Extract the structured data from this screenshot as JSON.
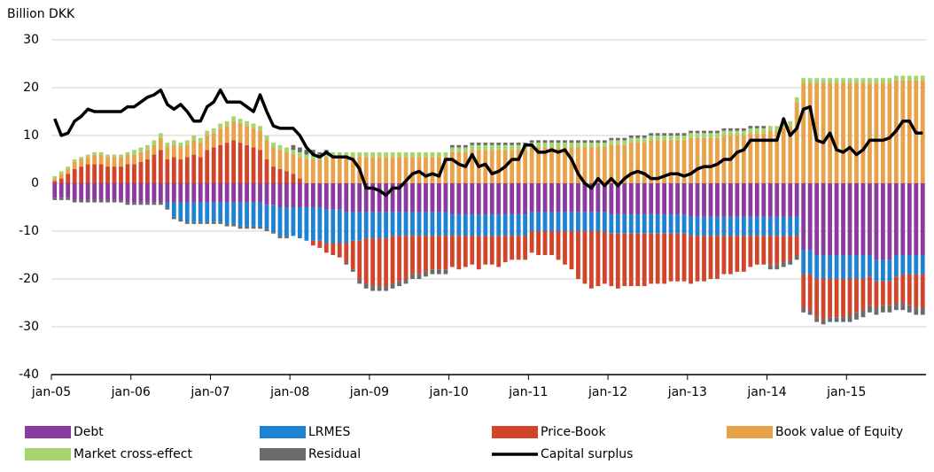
{
  "chart_data": {
    "type": "bar",
    "stacked": true,
    "y_label": "Billion DKK",
    "categories": [
      "jan-05",
      null,
      null,
      null,
      null,
      null,
      null,
      null,
      null,
      null,
      null,
      null,
      "jan-06",
      null,
      null,
      null,
      null,
      null,
      null,
      null,
      null,
      null,
      null,
      null,
      "jan-07",
      null,
      null,
      null,
      null,
      null,
      null,
      null,
      null,
      null,
      null,
      null,
      "jan-08",
      null,
      null,
      null,
      null,
      null,
      null,
      null,
      null,
      null,
      null,
      null,
      "jan-09",
      null,
      null,
      null,
      null,
      null,
      null,
      null,
      null,
      null,
      null,
      null,
      "jan-10",
      null,
      null,
      null,
      null,
      null,
      null,
      null,
      null,
      null,
      null,
      null,
      "jan-11",
      null,
      null,
      null,
      null,
      null,
      null,
      null,
      null,
      null,
      null,
      null,
      "jan-12",
      null,
      null,
      null,
      null,
      null,
      null,
      null,
      null,
      null,
      null,
      null,
      "jan-13",
      null,
      null,
      null,
      null,
      null,
      null,
      null,
      null,
      null,
      null,
      null,
      "jan-14",
      null,
      null,
      null,
      null,
      null,
      null,
      null,
      null,
      null,
      null,
      null,
      "jan-15",
      null,
      null,
      null,
      null,
      null,
      null,
      null,
      null,
      null,
      null,
      null
    ],
    "ylim": [
      -40,
      30
    ],
    "yticks": [
      -40,
      -30,
      -20,
      -10,
      0,
      10,
      20,
      30
    ],
    "grid": true,
    "series": [
      {
        "name": "Debt",
        "color": "#8b3a9e",
        "values": [
          -3,
          -3,
          -3,
          -3.5,
          -3.5,
          -3.5,
          -3.5,
          -3.5,
          -3.5,
          -3.5,
          -3.5,
          -4,
          -4,
          -4,
          -4,
          -4,
          -4,
          -4,
          -4,
          -4,
          -4,
          -4,
          -4,
          -4,
          -4,
          -4,
          -4,
          -4,
          -4,
          -4,
          -4,
          -4,
          -4.5,
          -4.5,
          -5,
          -5,
          -5,
          -5,
          -5,
          -5,
          -5,
          -5.5,
          -5.5,
          -5.5,
          -6,
          -6,
          -6,
          -6,
          -6,
          -6,
          -6,
          -6,
          -6,
          -6,
          -6,
          -6,
          -6,
          -6,
          -6,
          -6,
          -6.5,
          -6.5,
          -6.5,
          -6.5,
          -6.5,
          -6.5,
          -6.5,
          -6.5,
          -6.5,
          -6.5,
          -6.5,
          -6.5,
          -6,
          -6,
          -6,
          -6,
          -6,
          -6,
          -6,
          -6,
          -6,
          -6,
          -6,
          -6,
          -6.5,
          -6.5,
          -6.5,
          -6.5,
          -6.5,
          -6.5,
          -6.5,
          -6.5,
          -6.5,
          -6.5,
          -6.5,
          -6.5,
          -7,
          -7,
          -7,
          -7,
          -7,
          -7,
          -7,
          -7,
          -7,
          -7,
          -7,
          -7,
          -7,
          -7,
          -7,
          -7,
          -7,
          -14,
          -14,
          -15,
          -15,
          -15,
          -15,
          -15,
          -15,
          -15,
          -15,
          -15,
          -16,
          -16,
          -16,
          -15,
          -15,
          -15,
          -15,
          -15
        ]
      },
      {
        "name": "LRMES",
        "color": "#1e82d2",
        "values": [
          0,
          0,
          0,
          0,
          0,
          0,
          0,
          0,
          0,
          0,
          0,
          0,
          0,
          0,
          0,
          0,
          0,
          -1,
          -3,
          -3.5,
          -4,
          -4,
          -4,
          -4,
          -4,
          -4,
          -4.5,
          -4.5,
          -5,
          -5,
          -5,
          -5,
          -5,
          -5.5,
          -6,
          -6,
          -6,
          -6.5,
          -7,
          -7,
          -7,
          -7,
          -7,
          -7,
          -6.5,
          -6,
          -6,
          -5.5,
          -5.5,
          -5.5,
          -5.5,
          -5,
          -5,
          -5,
          -5,
          -5,
          -5,
          -5,
          -5,
          -5,
          -4.5,
          -4.5,
          -4.5,
          -4.5,
          -4.5,
          -4.5,
          -4.5,
          -4.5,
          -4.5,
          -4.5,
          -4.5,
          -4.5,
          -4,
          -4,
          -4,
          -4,
          -4,
          -4,
          -4,
          -4,
          -4,
          -4,
          -4,
          -4,
          -4,
          -4,
          -4,
          -4,
          -4,
          -4,
          -4,
          -4,
          -4,
          -4,
          -4,
          -4,
          -4,
          -4,
          -4,
          -4,
          -4,
          -4,
          -4,
          -4,
          -4,
          -4,
          -4,
          -4,
          -4,
          -4,
          -4,
          -4,
          -4,
          -5,
          -5,
          -5,
          -5,
          -5,
          -5,
          -5,
          -5,
          -5,
          -5,
          -4.5,
          -4.5,
          -4.5,
          -4.5,
          -4.5,
          -4,
          -4,
          -4,
          -4
        ]
      },
      {
        "name": "Price-Book",
        "color": "#d2452a",
        "values": [
          0.5,
          1,
          2,
          3,
          3.5,
          4,
          4,
          4,
          3.5,
          3.5,
          3.5,
          4,
          4,
          4.5,
          5,
          6,
          7,
          5,
          5.5,
          5,
          5.5,
          6,
          5.5,
          7,
          7.5,
          8,
          8.5,
          9,
          8.5,
          8,
          7.5,
          7,
          5,
          3.5,
          3,
          2.5,
          2,
          1,
          0,
          -1,
          -1.5,
          -2,
          -2.5,
          -3,
          -4,
          -6,
          -8,
          -9.5,
          -10,
          -10,
          -10,
          -10,
          -9.5,
          -9,
          -8,
          -8,
          -7.5,
          -7,
          -7,
          -7,
          -6.5,
          -7,
          -6.5,
          -6,
          -7,
          -6,
          -6,
          -6.5,
          -5.5,
          -5,
          -5,
          -5,
          -4.5,
          -5,
          -5,
          -5,
          -6,
          -7,
          -8,
          -10,
          -11,
          -12,
          -11.5,
          -11,
          -11,
          -11.5,
          -11,
          -11,
          -11,
          -11,
          -10.5,
          -10.5,
          -10.5,
          -10,
          -10,
          -10,
          -10,
          -9.5,
          -9.5,
          -9,
          -9,
          -8,
          -8,
          -7.5,
          -7.5,
          -6.5,
          -6,
          -6,
          -6,
          -6,
          -5.5,
          -5,
          -4,
          -7,
          -7.5,
          -8,
          -8.5,
          -8,
          -8,
          -8,
          -7.5,
          -7,
          -6.5,
          -6,
          -5.5,
          -5,
          -5,
          -5.5,
          -6,
          -6.5,
          -7,
          -7
        ]
      },
      {
        "name": "Book value of Equity",
        "color": "#e8a24a",
        "values": [
          0.5,
          1,
          1,
          1.5,
          1.5,
          1.5,
          2,
          2,
          2,
          2,
          2,
          2,
          2,
          2,
          2,
          2,
          2.5,
          2.5,
          2.5,
          2.5,
          2.5,
          3,
          3,
          3,
          3,
          3.5,
          3.5,
          4,
          4,
          4,
          4,
          4,
          4,
          4,
          4,
          4,
          4,
          4.5,
          5,
          5,
          5,
          5.5,
          5.5,
          5.5,
          5.5,
          5.5,
          5.5,
          5.5,
          5.5,
          5.5,
          5.5,
          5.5,
          5.5,
          5.5,
          5.5,
          5.5,
          5.5,
          5.5,
          5.5,
          5.5,
          6.5,
          6.5,
          6.5,
          7,
          7,
          7,
          7,
          7,
          7,
          7,
          7,
          7,
          7.5,
          7.5,
          7.5,
          7.5,
          7.5,
          7.5,
          7.5,
          7.5,
          7.5,
          7.5,
          7.5,
          7.5,
          8,
          8,
          8,
          8.5,
          8.5,
          8.5,
          9,
          9,
          9,
          9,
          9,
          9,
          9.5,
          9.5,
          9.5,
          9.5,
          9.5,
          10,
          10,
          10,
          10,
          10.5,
          10.5,
          10.5,
          11,
          11,
          11.5,
          12,
          17,
          21,
          21,
          21,
          21,
          21,
          21,
          21,
          21,
          21,
          21,
          21,
          21,
          21,
          21,
          21.5,
          21.5,
          21.5,
          21.5,
          21.5
        ]
      },
      {
        "name": "Market cross-effect",
        "color": "#a8d46f",
        "values": [
          0.5,
          0.5,
          0.5,
          0.5,
          0.5,
          0.5,
          0.5,
          0.5,
          0.5,
          0.5,
          0.5,
          0.5,
          1,
          1,
          1,
          1,
          1,
          1,
          1,
          1,
          1,
          1,
          1,
          1,
          1,
          1,
          1,
          1,
          1,
          1,
          1,
          1,
          1,
          1,
          1,
          1,
          1,
          1,
          1,
          1,
          1,
          1,
          1,
          1,
          1,
          1,
          1,
          1,
          1,
          1,
          1,
          1,
          1,
          1,
          1,
          1,
          1,
          1,
          1,
          1,
          1,
          1,
          1,
          1,
          1,
          1,
          1,
          1,
          1,
          1,
          1,
          1,
          1,
          1,
          1,
          1,
          1,
          1,
          1,
          1,
          1,
          1,
          1,
          1,
          1,
          1,
          1,
          1,
          1,
          1,
          1,
          1,
          1,
          1,
          1,
          1,
          1,
          1,
          1,
          1,
          1,
          1,
          1,
          1,
          1,
          1,
          1,
          1,
          1,
          1,
          1,
          1,
          1,
          1,
          1,
          1,
          1,
          1,
          1,
          1,
          1,
          1,
          1,
          1,
          1,
          1,
          1,
          1,
          1,
          1,
          1,
          1
        ]
      },
      {
        "name": "Residual",
        "color": "#6b6b6b",
        "values": [
          -0.5,
          -0.5,
          -0.5,
          -0.5,
          -0.5,
          -0.5,
          -0.5,
          -0.5,
          -0.5,
          -0.5,
          -0.5,
          -0.5,
          -0.5,
          -0.5,
          -0.5,
          -0.5,
          -0.5,
          -0.5,
          -0.5,
          -0.5,
          -0.5,
          -0.5,
          -0.5,
          -0.5,
          -0.5,
          -0.5,
          -0.5,
          -0.5,
          -0.5,
          -0.5,
          -0.5,
          -0.5,
          -0.5,
          -0.5,
          -0.5,
          -0.5,
          1,
          1,
          1,
          1,
          0.5,
          0.5,
          0,
          0,
          -0.5,
          -0.5,
          -1,
          -1,
          -1,
          -1,
          -1,
          -1,
          -1,
          -1,
          -1,
          -1,
          -1,
          -1,
          -1,
          -1,
          0.5,
          0.5,
          0.5,
          0.5,
          0.5,
          0.5,
          0.5,
          0.5,
          0.5,
          0.5,
          0.5,
          0.5,
          0.5,
          0.5,
          0.5,
          0.5,
          0.5,
          0.5,
          0.5,
          0.5,
          0.5,
          0.5,
          0.5,
          0.5,
          0.5,
          0.5,
          0.5,
          0.5,
          0.5,
          0.5,
          0.5,
          0.5,
          0.5,
          0.5,
          0.5,
          0.5,
          0.5,
          0.5,
          0.5,
          0.5,
          0.5,
          0.5,
          0.5,
          0.5,
          0.5,
          0.5,
          0.5,
          0.5,
          -1,
          -1,
          -1,
          -1,
          -1,
          -1,
          -1,
          -1,
          -1,
          -1,
          -1,
          -1,
          -1.5,
          -1.5,
          -1.5,
          -1.5,
          -1.5,
          -1.5,
          -1.5,
          -1.5,
          -1.5,
          -1.5,
          -1.5,
          -1.5
        ]
      },
      {
        "name": "Capital surplus",
        "color": "#000000",
        "type": "line",
        "values": [
          13.5,
          10,
          10.5,
          13,
          14,
          15.5,
          15,
          15,
          15,
          15,
          15,
          16,
          16,
          17,
          18,
          18.5,
          19.5,
          16.5,
          15.5,
          16.5,
          15,
          13,
          13,
          16,
          17,
          19.5,
          17,
          17,
          17,
          16,
          15,
          18.5,
          15,
          12,
          11.5,
          11.5,
          11.5,
          10,
          7.5,
          6,
          5.5,
          6.5,
          5.5,
          5.5,
          5.5,
          5,
          3,
          -1,
          -1,
          -1.5,
          -2.5,
          -1,
          -1,
          0.5,
          2,
          2.5,
          1.5,
          2,
          1.5,
          5,
          5,
          4,
          3.5,
          6,
          3.5,
          4,
          2,
          2.5,
          3.5,
          5,
          5,
          8,
          8,
          6.5,
          6.5,
          7,
          6.5,
          7,
          5,
          2,
          0,
          -1,
          1,
          -0.5,
          1,
          -0.5,
          1,
          2,
          2.5,
          2,
          1,
          1,
          1.5,
          2,
          2,
          1.5,
          2,
          3,
          3.5,
          3.5,
          4,
          5,
          5,
          6.5,
          7,
          9,
          9,
          9,
          9,
          9,
          13.5,
          10,
          11.5,
          15.5,
          16,
          9,
          8.5,
          10.5,
          7,
          6.5,
          7.5,
          6,
          7,
          9,
          9,
          9,
          9.5,
          11,
          13,
          13,
          10.5,
          10.5
        ]
      }
    ]
  }
}
